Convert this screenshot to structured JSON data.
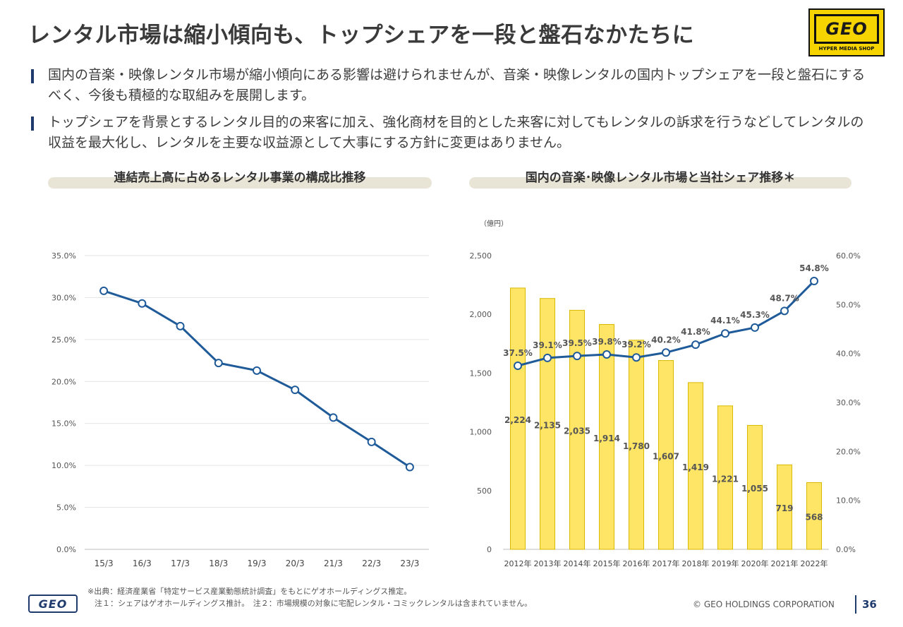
{
  "title": "レンタル市場は縮小傾向も、トップシェアを一段と盤石なかたちに",
  "logo": {
    "main": "GEO",
    "sub": "HYPER MEDIA SHOP"
  },
  "bullets": [
    "国内の音楽・映像レンタル市場が縮小傾向にある影響は避けられませんが、音楽・映像レンタルの国内トップシェアを一段と盤石にするべく、今後も積極的な取組みを展開します。",
    "トップシェアを背景とするレンタル目的の来客に加え、強化商材を目的とした来客に対してもレンタルの訴求を行うなどしてレンタルの収益を最大化し、レンタルを主要な収益源として大事にする方針に変更はありません。"
  ],
  "chart_left_title": "連結売上高に占めるレンタル事業の構成比推移",
  "chart_right_title": "国内の音楽･映像レンタル市場と当社シェア推移＊",
  "chart_data": [
    {
      "type": "line",
      "title": "連結売上高に占めるレンタル事業の構成比推移",
      "categories": [
        "15/3",
        "16/3",
        "17/3",
        "18/3",
        "19/3",
        "20/3",
        "21/3",
        "22/3",
        "23/3"
      ],
      "values": [
        30.8,
        29.3,
        26.6,
        22.2,
        21.3,
        19.0,
        15.7,
        12.8,
        9.8
      ],
      "ylim": [
        0,
        35
      ],
      "yticks": [
        "0.0%",
        "5.0%",
        "10.0%",
        "15.0%",
        "20.0%",
        "25.0%",
        "30.0%",
        "35.0%"
      ],
      "grid": true,
      "line_color": "#1f5a99"
    },
    {
      "type": "bar+line",
      "title": "国内の音楽･映像レンタル市場と当社シェア推移＊",
      "unit_label": "（億円）",
      "categories": [
        "2012年",
        "2013年",
        "2014年",
        "2015年",
        "2016年",
        "2017年",
        "2018年",
        "2019年",
        "2020年",
        "2021年",
        "2022年"
      ],
      "bar_values": [
        2224,
        2135,
        2035,
        1914,
        1780,
        1607,
        1419,
        1221,
        1055,
        719,
        568
      ],
      "bar_labels": [
        "2,224",
        "2,135",
        "2,035",
        "1,914",
        "1,780",
        "1,607",
        "1,419",
        "1,221",
        "1,055",
        "719",
        "568"
      ],
      "line_values": [
        37.5,
        39.1,
        39.5,
        39.8,
        39.2,
        40.2,
        41.8,
        44.1,
        45.3,
        48.7,
        54.8
      ],
      "line_labels": [
        "37.5%",
        "39.1%",
        "39.5%",
        "39.8%",
        "39.2%",
        "40.2%",
        "41.8%",
        "44.1%",
        "45.3%",
        "48.7%",
        "54.8%"
      ],
      "ylim_left": [
        0,
        2500
      ],
      "yticks_left": [
        "0",
        "500",
        "1,000",
        "1,500",
        "2,000",
        "2,500"
      ],
      "ylim_right": [
        0,
        60
      ],
      "yticks_right": [
        "0.0%",
        "10.0%",
        "20.0%",
        "30.0%",
        "40.0%",
        "50.0%",
        "60.0%"
      ],
      "bar_color": "#ffe566",
      "line_color": "#1f5a99"
    }
  ],
  "footnotes": {
    "source": "※出典：経済産業省「特定サービス産業動態統計調査」をもとにゲオホールディングス推定。",
    "note": "注１：シェアはゲオホールディングス推計。　注２：市場規模の対象に宅配レンタル・コミックレンタルは含まれていません。"
  },
  "corporation": "© GEO HOLDINGS CORPORATION",
  "page_number": "36",
  "footer_logo": "GEO"
}
